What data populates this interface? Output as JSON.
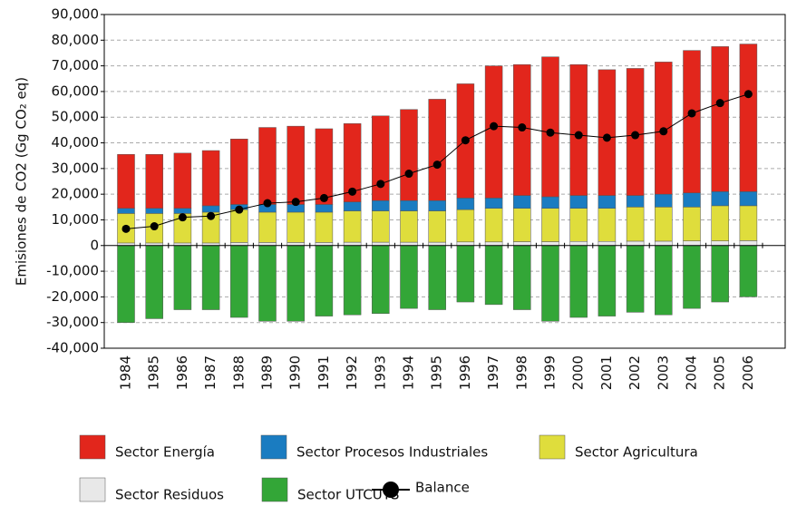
{
  "chart_data": {
    "type": "bar",
    "stacked": true,
    "y_label": "Emisiones de CO2 (Gg CO₂ eq)",
    "categories": [
      "1984",
      "1985",
      "1986",
      "1987",
      "1988",
      "1989",
      "1990",
      "1991",
      "1992",
      "1993",
      "1994",
      "1995",
      "1996",
      "1997",
      "1998",
      "1999",
      "2000",
      "2001",
      "2002",
      "2003",
      "2004",
      "2005",
      "2006"
    ],
    "series": [
      {
        "name": "Sector Energía",
        "color": "#e2261c",
        "values": [
          21000,
          21000,
          21500,
          21500,
          25500,
          30000,
          30500,
          29500,
          30500,
          33000,
          35500,
          39500,
          44500,
          51500,
          51000,
          54500,
          51000,
          49000,
          49500,
          51500,
          55500,
          56500,
          57500
        ]
      },
      {
        "name": "Sector Procesos Industriales",
        "color": "#1a7cc1",
        "values": [
          2000,
          2000,
          2000,
          2500,
          2000,
          3000,
          3000,
          3000,
          3500,
          4000,
          4000,
          4000,
          4500,
          4000,
          5000,
          4500,
          5000,
          5000,
          4500,
          5000,
          5500,
          5500,
          5500
        ]
      },
      {
        "name": "Sector Agricultura",
        "color": "#dfdd3c",
        "values": [
          11500,
          11500,
          11500,
          12000,
          12800,
          11800,
          11800,
          11800,
          12200,
          12200,
          12200,
          12200,
          12600,
          13100,
          13000,
          13000,
          12900,
          12900,
          13300,
          13300,
          13200,
          13700,
          13600
        ]
      },
      {
        "name": "Sector Residuos",
        "color": "#e8e8e8",
        "values": [
          1000,
          1000,
          1000,
          1000,
          1200,
          1200,
          1200,
          1200,
          1300,
          1300,
          1300,
          1300,
          1400,
          1400,
          1500,
          1500,
          1600,
          1600,
          1700,
          1700,
          1800,
          1800,
          1900
        ]
      },
      {
        "name": "Sector UTCUTS",
        "color": "#33a637",
        "values": [
          -30000,
          -28500,
          -25000,
          -25000,
          -28000,
          -29500,
          -29500,
          -27500,
          -27000,
          -26500,
          -24500,
          -25000,
          -22000,
          -23000,
          -25000,
          -29500,
          -28000,
          -27500,
          -26000,
          -27000,
          -24500,
          -22000,
          -20000
        ]
      },
      {
        "name": "Balance",
        "color": "#000000",
        "type": "line",
        "values": [
          6500,
          7500,
          11000,
          11500,
          14000,
          16500,
          17000,
          18500,
          21000,
          24000,
          28000,
          31500,
          41000,
          46500,
          46000,
          44000,
          43000,
          42000,
          43000,
          44500,
          51500,
          55500,
          59000
        ]
      }
    ],
    "ylim": [
      -40000,
      90000
    ],
    "yticks": [
      {
        "value": -40000,
        "label": "-40,000"
      },
      {
        "value": -30000,
        "label": "-30,000"
      },
      {
        "value": -20000,
        "label": "-20,000"
      },
      {
        "value": -10000,
        "label": "-10,000"
      },
      0,
      {
        "value": 10000,
        "label": "10,000"
      },
      {
        "value": 20000,
        "label": "20,000"
      },
      {
        "value": 30000,
        "label": "30,000"
      },
      {
        "value": 40000,
        "label": "40,000"
      },
      {
        "value": 50000,
        "label": "50,000"
      },
      {
        "value": 60000,
        "label": "60,000"
      },
      {
        "value": 70000,
        "label": "70,000"
      },
      {
        "value": 80000,
        "label": "80,000"
      },
      {
        "value": 90000,
        "label": "90,000"
      }
    ],
    "grid": true
  }
}
